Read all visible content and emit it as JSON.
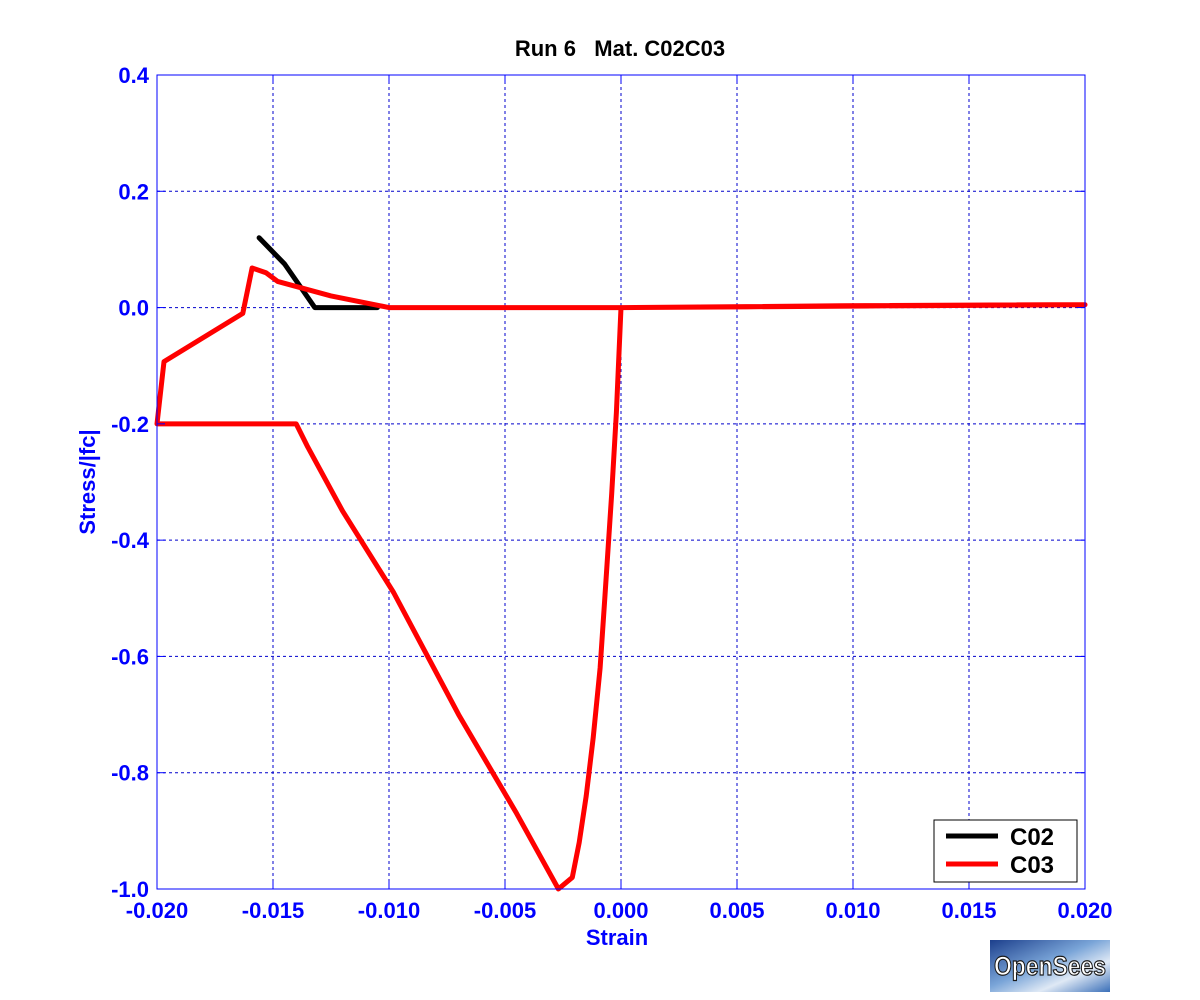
{
  "chart_data": {
    "type": "line",
    "title": "Run 6   Mat. C02C03",
    "xlabel": "Strain",
    "ylabel": "Stress/|fc|",
    "xlim": [
      -0.02,
      0.02
    ],
    "ylim": [
      -1.0,
      0.4
    ],
    "x_ticks": [
      "-0.020",
      "-0.015",
      "-0.010",
      "-0.005",
      "0.000",
      "0.005",
      "0.010",
      "0.015",
      "0.020"
    ],
    "y_ticks": [
      "0.4",
      "0.2",
      "0.0",
      "-0.2",
      "-0.4",
      "-0.6",
      "-0.8",
      "-1.0"
    ],
    "x_tick_values": [
      -0.02,
      -0.015,
      -0.01,
      -0.005,
      0.0,
      0.005,
      0.01,
      0.015,
      0.02
    ],
    "y_tick_values": [
      0.4,
      0.2,
      0.0,
      -0.2,
      -0.4,
      -0.6,
      -0.8,
      -1.0
    ],
    "grid": true,
    "legend_position": "bottom-right",
    "colors": {
      "axes": "#0000ff",
      "grid": "#0000cc",
      "title": "#000000",
      "background": "#ffffff"
    },
    "series": [
      {
        "name": "C02",
        "color": "#000000",
        "points": [
          [
            -0.0156,
            0.12
          ],
          [
            -0.0145,
            0.075
          ],
          [
            -0.0132,
            0.0
          ],
          [
            -0.0105,
            0.0
          ]
        ]
      },
      {
        "name": "C03",
        "color": "#ff0000",
        "points": [
          [
            0.02,
            0.005
          ],
          [
            0.0185,
            0.005
          ],
          [
            0.0095,
            0.003
          ],
          [
            0.0,
            0.0
          ],
          [
            -0.0002,
            -0.18
          ],
          [
            -0.0004,
            -0.32
          ],
          [
            -0.0007,
            -0.5
          ],
          [
            -0.0009,
            -0.62
          ],
          [
            -0.0012,
            -0.74
          ],
          [
            -0.0015,
            -0.84
          ],
          [
            -0.0018,
            -0.92
          ],
          [
            -0.0021,
            -0.98
          ],
          [
            -0.0027,
            -1.0
          ],
          [
            -0.0045,
            -0.87
          ],
          [
            -0.007,
            -0.7
          ],
          [
            -0.0098,
            -0.49
          ],
          [
            -0.012,
            -0.35
          ],
          [
            -0.0135,
            -0.24
          ],
          [
            -0.014,
            -0.2
          ],
          [
            -0.02,
            -0.2
          ],
          [
            -0.0197,
            -0.093
          ],
          [
            -0.0163,
            -0.01
          ],
          [
            -0.0159,
            0.068
          ],
          [
            -0.0153,
            0.06
          ],
          [
            -0.0148,
            0.045
          ],
          [
            -0.0125,
            0.02
          ],
          [
            -0.01,
            0.0
          ],
          [
            -0.0075,
            0.0
          ],
          [
            0.0,
            0.0
          ],
          [
            0.02,
            0.005
          ]
        ]
      }
    ]
  },
  "logo": {
    "text": "OpenSees"
  }
}
